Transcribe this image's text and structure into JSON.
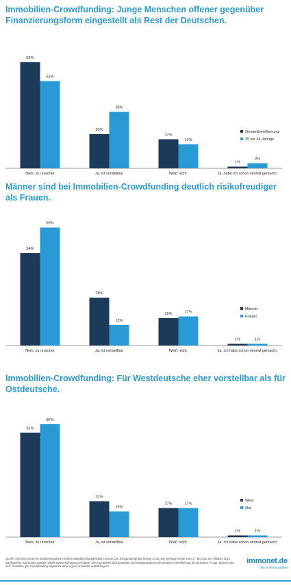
{
  "colors": {
    "title": "#2a9ad6",
    "dark_bar": "#1c3a5a",
    "light_bar": "#2a9ad6",
    "axis": "#999999"
  },
  "chart_data": [
    {
      "type": "bar",
      "title": "Immobilien-Crowdfunding: Junge Menschen offener gegenüber Finanzierungsform eingestellt als Rest der Deutschen.",
      "categories": [
        "Nein, zu unsicher",
        "Ja, ist vorstellbar",
        "Weiß nicht.",
        "Ja, habe ich schon einmal gemacht."
      ],
      "series": [
        {
          "name": "Gesamtbevölkerung",
          "values": [
            62,
            20,
            17,
            1
          ],
          "labels": [
            "62%",
            "20%",
            "17%",
            "1%"
          ]
        },
        {
          "name": "25 bis 34-Jährige",
          "values": [
            51,
            33,
            14,
            3
          ],
          "labels": [
            "51%",
            "33%",
            "14%",
            "3%"
          ]
        }
      ],
      "ylim": [
        0,
        70
      ],
      "legend": "right",
      "grid": false
    },
    {
      "type": "bar",
      "title": "Männer sind bei Immobilien-Crowdfunding deutlich risikofreudiger als Frauen.",
      "categories": [
        "Nein, zu unsicher",
        "Ja, ist vorstellbar",
        "Weiß nicht.",
        "Ja, ich habe schon einmal gemacht."
      ],
      "series": [
        {
          "name": "Männer",
          "values": [
            54,
            28,
            16,
            1
          ],
          "labels": [
            "54%",
            "28%",
            "16%",
            "1%"
          ]
        },
        {
          "name": "Frauen",
          "values": [
            69,
            12,
            17,
            1
          ],
          "labels": [
            "69%",
            "12%",
            "17%",
            "1%"
          ]
        }
      ],
      "ylim": [
        0,
        70
      ],
      "legend": "right",
      "grid": false
    },
    {
      "type": "bar",
      "title": "Immobilien-Crowdfunding: Für Westdeutsche eher vorstellbar als für Ostdeutsche.",
      "categories": [
        "Nein, zu unsicher",
        "Ja, ist vorstellbar",
        "Weiß nicht.",
        "Ja, ich habe schon einmal gemacht."
      ],
      "series": [
        {
          "name": "West",
          "values": [
            61,
            21,
            17,
            1
          ],
          "labels": [
            "61%",
            "21%",
            "17%",
            "1%"
          ]
        },
        {
          "name": "Ost",
          "values": [
            66,
            15,
            17,
            1
          ],
          "labels": [
            "66%",
            "15%",
            "17%",
            "1%"
          ]
        }
      ],
      "ylim": [
        0,
        70
      ],
      "legend": "right",
      "grid": false
    }
  ],
  "footer": {
    "source": "Quelle: Immonet GmbH in Zusammenarbeit mit dem Marktforschungsinstitut YouGov. Die Stichprobengröße betrug 1.011. Die Umfrage wurde vom 17. bis zum 20. Oktober 2014 durchgeführt. Die Daten wurden mittels Online-Befragung erhoben. Die Ergebnisse sind gewichtet und repräsentativ für die deutsche Bevölkerung ab 18 Jahren. Frage: Können Sie sich vorstellen, per Crowdfunding Kapital für eine eigene Immobilie aufzubringen?",
    "logo": "immonet.de",
    "tagline": "Wir sind Immobilien"
  }
}
